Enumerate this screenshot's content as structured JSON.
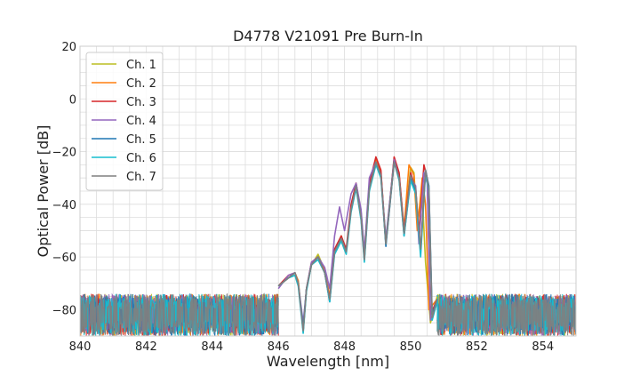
{
  "chart_data": {
    "type": "line",
    "title": "D4778 V21091 Pre Burn-In",
    "xlabel": "Wavelength [nm]",
    "ylabel": "Optical Power [dB]",
    "xlim": [
      840,
      855
    ],
    "ylim": [
      -90,
      20
    ],
    "xticks": [
      840,
      842,
      844,
      846,
      848,
      850,
      852,
      854
    ],
    "yticks": [
      -80,
      -60,
      -40,
      -20,
      0,
      20
    ],
    "grid": true,
    "legend_position": "top-left",
    "noise_floor": [
      -90,
      -72
    ],
    "series": [
      {
        "name": "Ch. 1",
        "color": "#bcbd22",
        "points": [
          [
            846.0,
            -71
          ],
          [
            846.3,
            -68
          ],
          [
            846.5,
            -66
          ],
          [
            846.6,
            -69
          ],
          [
            846.75,
            -88
          ],
          [
            846.85,
            -72
          ],
          [
            847.0,
            -63
          ],
          [
            847.2,
            -59
          ],
          [
            847.4,
            -65
          ],
          [
            847.55,
            -75
          ],
          [
            847.7,
            -58
          ],
          [
            847.9,
            -52
          ],
          [
            848.05,
            -58
          ],
          [
            848.2,
            -42
          ],
          [
            848.35,
            -33
          ],
          [
            848.5,
            -44
          ],
          [
            848.6,
            -60
          ],
          [
            848.75,
            -33
          ],
          [
            848.95,
            -23
          ],
          [
            849.1,
            -28
          ],
          [
            849.25,
            -55
          ],
          [
            849.5,
            -23
          ],
          [
            849.65,
            -29
          ],
          [
            849.8,
            -50
          ],
          [
            850.0,
            -26
          ],
          [
            850.1,
            -28
          ],
          [
            850.2,
            -48
          ],
          [
            850.35,
            -36
          ],
          [
            850.45,
            -62
          ],
          [
            850.6,
            -85
          ],
          [
            850.8,
            -75
          ]
        ]
      },
      {
        "name": "Ch. 2",
        "color": "#ff7f0e",
        "points": [
          [
            846.0,
            -71
          ],
          [
            846.3,
            -68
          ],
          [
            846.5,
            -66
          ],
          [
            846.6,
            -69
          ],
          [
            846.75,
            -88
          ],
          [
            846.85,
            -72
          ],
          [
            847.0,
            -63
          ],
          [
            847.2,
            -60
          ],
          [
            847.4,
            -65
          ],
          [
            847.55,
            -75
          ],
          [
            847.7,
            -58
          ],
          [
            847.9,
            -52
          ],
          [
            848.05,
            -58
          ],
          [
            848.2,
            -41
          ],
          [
            848.35,
            -32
          ],
          [
            848.5,
            -44
          ],
          [
            848.6,
            -58
          ],
          [
            848.75,
            -33
          ],
          [
            848.95,
            -23
          ],
          [
            849.1,
            -28
          ],
          [
            849.25,
            -54
          ],
          [
            849.5,
            -23
          ],
          [
            849.65,
            -29
          ],
          [
            849.8,
            -49
          ],
          [
            849.95,
            -25
          ],
          [
            850.1,
            -29
          ],
          [
            850.2,
            -50
          ],
          [
            850.35,
            -30
          ],
          [
            850.45,
            -40
          ],
          [
            850.55,
            -80
          ],
          [
            850.8,
            -76
          ]
        ]
      },
      {
        "name": "Ch. 3",
        "color": "#d62728",
        "points": [
          [
            846.0,
            -71
          ],
          [
            846.3,
            -67
          ],
          [
            846.5,
            -66
          ],
          [
            846.6,
            -70
          ],
          [
            846.75,
            -88
          ],
          [
            846.85,
            -72
          ],
          [
            847.0,
            -62
          ],
          [
            847.2,
            -60
          ],
          [
            847.4,
            -66
          ],
          [
            847.55,
            -76
          ],
          [
            847.7,
            -57
          ],
          [
            847.9,
            -52
          ],
          [
            848.05,
            -57
          ],
          [
            848.2,
            -40
          ],
          [
            848.35,
            -32
          ],
          [
            848.5,
            -43
          ],
          [
            848.6,
            -60
          ],
          [
            848.75,
            -32
          ],
          [
            848.95,
            -22
          ],
          [
            849.1,
            -27
          ],
          [
            849.25,
            -55
          ],
          [
            849.5,
            -22
          ],
          [
            849.65,
            -28
          ],
          [
            849.8,
            -50
          ],
          [
            850.0,
            -28
          ],
          [
            850.15,
            -34
          ],
          [
            850.25,
            -52
          ],
          [
            850.4,
            -25
          ],
          [
            850.5,
            -30
          ],
          [
            850.6,
            -82
          ],
          [
            850.8,
            -76
          ]
        ]
      },
      {
        "name": "Ch. 4",
        "color": "#9467bd",
        "points": [
          [
            846.0,
            -72
          ],
          [
            846.3,
            -67
          ],
          [
            846.5,
            -66
          ],
          [
            846.6,
            -70
          ],
          [
            846.75,
            -85
          ],
          [
            846.85,
            -72
          ],
          [
            847.0,
            -62
          ],
          [
            847.2,
            -60
          ],
          [
            847.4,
            -64
          ],
          [
            847.55,
            -72
          ],
          [
            847.7,
            -52
          ],
          [
            847.85,
            -41
          ],
          [
            848.0,
            -50
          ],
          [
            848.2,
            -36
          ],
          [
            848.35,
            -32
          ],
          [
            848.5,
            -42
          ],
          [
            848.6,
            -58
          ],
          [
            848.75,
            -30
          ],
          [
            848.95,
            -24
          ],
          [
            849.1,
            -29
          ],
          [
            849.25,
            -53
          ],
          [
            849.5,
            -23
          ],
          [
            849.65,
            -30
          ],
          [
            849.8,
            -51
          ],
          [
            850.0,
            -30
          ],
          [
            850.15,
            -33
          ],
          [
            850.25,
            -55
          ],
          [
            850.4,
            -28
          ],
          [
            850.5,
            -32
          ],
          [
            850.6,
            -84
          ],
          [
            850.8,
            -76
          ]
        ]
      },
      {
        "name": "Ch. 5",
        "color": "#1f77b4",
        "points": [
          [
            846.0,
            -71
          ],
          [
            846.3,
            -68
          ],
          [
            846.5,
            -66
          ],
          [
            846.6,
            -70
          ],
          [
            846.75,
            -87
          ],
          [
            846.85,
            -72
          ],
          [
            847.0,
            -63
          ],
          [
            847.2,
            -60
          ],
          [
            847.4,
            -66
          ],
          [
            847.55,
            -77
          ],
          [
            847.7,
            -58
          ],
          [
            847.9,
            -53
          ],
          [
            848.05,
            -58
          ],
          [
            848.2,
            -42
          ],
          [
            848.35,
            -33
          ],
          [
            848.5,
            -45
          ],
          [
            848.6,
            -61
          ],
          [
            848.75,
            -34
          ],
          [
            848.95,
            -24
          ],
          [
            849.1,
            -29
          ],
          [
            849.25,
            -56
          ],
          [
            849.5,
            -24
          ],
          [
            849.65,
            -30
          ],
          [
            849.8,
            -52
          ],
          [
            850.0,
            -30
          ],
          [
            850.15,
            -35
          ],
          [
            850.3,
            -58
          ],
          [
            850.45,
            -27
          ],
          [
            850.55,
            -33
          ],
          [
            850.65,
            -82
          ],
          [
            850.8,
            -76
          ]
        ]
      },
      {
        "name": "Ch. 6",
        "color": "#17becf",
        "points": [
          [
            846.0,
            -71
          ],
          [
            846.3,
            -68
          ],
          [
            846.5,
            -67
          ],
          [
            846.6,
            -71
          ],
          [
            846.75,
            -89
          ],
          [
            846.85,
            -73
          ],
          [
            847.0,
            -63
          ],
          [
            847.2,
            -61
          ],
          [
            847.4,
            -66
          ],
          [
            847.55,
            -77
          ],
          [
            847.7,
            -59
          ],
          [
            847.9,
            -54
          ],
          [
            848.05,
            -59
          ],
          [
            848.2,
            -43
          ],
          [
            848.35,
            -34
          ],
          [
            848.5,
            -46
          ],
          [
            848.6,
            -62
          ],
          [
            848.75,
            -35
          ],
          [
            848.95,
            -25
          ],
          [
            849.1,
            -30
          ],
          [
            849.25,
            -55
          ],
          [
            849.5,
            -24
          ],
          [
            849.65,
            -31
          ],
          [
            849.8,
            -52
          ],
          [
            850.0,
            -31
          ],
          [
            850.15,
            -36
          ],
          [
            850.3,
            -60
          ],
          [
            850.45,
            -28
          ],
          [
            850.55,
            -35
          ],
          [
            850.65,
            -84
          ],
          [
            850.8,
            -77
          ]
        ]
      },
      {
        "name": "Ch. 7",
        "color": "#7f7f7f",
        "points": [
          [
            846.0,
            -71
          ],
          [
            846.3,
            -68
          ],
          [
            846.5,
            -66
          ],
          [
            846.6,
            -70
          ],
          [
            846.75,
            -88
          ],
          [
            846.85,
            -72
          ],
          [
            847.0,
            -63
          ],
          [
            847.2,
            -60
          ],
          [
            847.4,
            -66
          ],
          [
            847.55,
            -76
          ],
          [
            847.7,
            -58
          ],
          [
            847.9,
            -53
          ],
          [
            848.05,
            -58
          ],
          [
            848.2,
            -42
          ],
          [
            848.35,
            -33
          ],
          [
            848.5,
            -45
          ],
          [
            848.6,
            -61
          ],
          [
            848.75,
            -34
          ],
          [
            848.95,
            -24
          ],
          [
            849.1,
            -29
          ],
          [
            849.25,
            -55
          ],
          [
            849.5,
            -24
          ],
          [
            849.65,
            -30
          ],
          [
            849.8,
            -51
          ],
          [
            850.0,
            -29
          ],
          [
            850.15,
            -34
          ],
          [
            850.3,
            -57
          ],
          [
            850.45,
            -27
          ],
          [
            850.55,
            -34
          ],
          [
            850.65,
            -83
          ],
          [
            850.8,
            -76
          ]
        ]
      }
    ]
  }
}
